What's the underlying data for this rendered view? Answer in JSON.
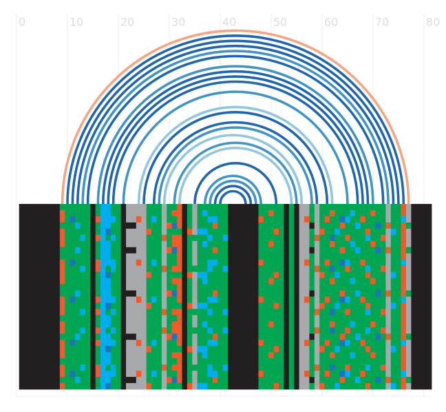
{
  "chart_data": {
    "type": "arc-alignment",
    "xlim": [
      0,
      81.5
    ],
    "xticks": [
      0,
      10,
      20,
      30,
      40,
      50,
      60,
      70,
      80
    ],
    "grid": true,
    "arcs": [
      {
        "start": 9,
        "end": 77,
        "color": "#f4a582"
      },
      {
        "start": 10,
        "end": 76,
        "color": "#2166ac"
      },
      {
        "start": 11,
        "end": 75,
        "color": "#2166ac"
      },
      {
        "start": 12,
        "end": 74,
        "color": "#2166ac"
      },
      {
        "start": 13,
        "end": 73,
        "color": "#4393c3"
      },
      {
        "start": 14,
        "end": 72,
        "color": "#2166ac"
      },
      {
        "start": 16,
        "end": 70,
        "color": "#4393c3"
      },
      {
        "start": 17,
        "end": 69,
        "color": "#2166ac"
      },
      {
        "start": 18,
        "end": 68,
        "color": "#2166ac"
      },
      {
        "start": 19,
        "end": 67,
        "color": "#2166ac"
      },
      {
        "start": 21,
        "end": 65,
        "color": "#4393c3"
      },
      {
        "start": 24,
        "end": 62,
        "color": "#92c5de"
      },
      {
        "start": 25,
        "end": 61,
        "color": "#2166ac"
      },
      {
        "start": 27,
        "end": 59,
        "color": "#2166ac"
      },
      {
        "start": 28,
        "end": 58,
        "color": "#4393c3"
      },
      {
        "start": 29,
        "end": 56,
        "color": "#92c5de"
      },
      {
        "start": 31,
        "end": 55,
        "color": "#4393c3"
      },
      {
        "start": 32,
        "end": 54,
        "color": "#92c5de"
      },
      {
        "start": 35,
        "end": 51,
        "color": "#2166ac"
      },
      {
        "start": 37,
        "end": 48,
        "color": "#4393c3"
      },
      {
        "start": 38,
        "end": 47,
        "color": "#4393c3"
      },
      {
        "start": 39,
        "end": 46,
        "color": "#2166ac"
      },
      {
        "start": 40,
        "end": 45,
        "color": "#2166ac"
      }
    ],
    "palette": {
      "K": "#231f20",
      "G": "#00a651",
      "Y": "#a7a9ac",
      "O": "#f15a29",
      "C": "#00aeef",
      "B": "#1c75bc"
    },
    "rows": [
      "KKKKKKKKGGGGGGKGCCGGKYYYYGGGYGGOKGYGGGGGGKKKKKKGGGGGKGKYYGYGGGGGGGGGGGGGYGGOYKKKK",
      "KKKKKKKKOGGGGGKGCCGGKYYYYGGGYGOOKGYGCGGGGKKKKKKGGOGGKGKYYGYGGOGGGCGGGOGGYGGOYKKKK",
      "KKKKKKKKOGBGGGKOCCCGKYYOYGCGYGGOKGYGGCCGGKKKKKKOGGGGKGKYOGYGOGGBCGGOGGGGYGGCYKKKK",
      "KKKKKKKKGGGCGGKGCCGGKKKYYGGGYOBOKGYGGGOGGKKKKKKGGGGGKGKYYKYGGGGOGGCGGGBGOGGOGKKKK",
      "KKKKKKKKOGGGGGKGCBGGKYYYYOGGYGGGKOYCCGGGGKKKKKKGGGOGKGKYYGYOGGCGGGGGOGGGYCGOYKKKK",
      "KKKKKKKKOGGGCGKOCGCGKYYYYGGGOGOOKGGGGCGGCKKKKKKGGGGGKGKYYGOGGBGGOGGGCGGOYGGOYKKKK",
      "KKKKKKKKOGGGGGKGCCGGKYYYYGGGYGOOKGYGCGGGGKKKKKKGGOGGKGKYYGYGGOGGGCGGGOGGYGGOYKKKK",
      "KKKKKKKKGGGCGGKGCCGGKKKYYGGGYOBOKGYGGGOGGKKKKKKGGGGGKGKYYKYGGGGOGGCGGGBGOGGOGKKKK",
      "KKKKKKKKGGGGGGKGCCGGKYYYYGGGYGGOKGYGGGGGGKKKKKKGGGGGKGKYYGYGGGGGGGGGGGGGYGGOYKKKK",
      "KKKKKKKKOGBGGGKOCCCGKYYOYGCGYGGOKGYGGCCGGKKKKKKOGGGGKGKYOGYGOGGBCGGOGGGGYGGCYKKKK",
      "KKKKKKKKOGGGCGKOCGCGKYYYYGGGOGOOKGGGGCGGCKKKKKKGGGGGKGKYYGOGGBGGOGGGCGGOYGGOYKKKK",
      "KKKKKKKKOGGGGGKGCBGGKYYYYOGGYGGGKOYCCGGGGKKKKKKGGGOGKGKYYGYOGGCGGGGGOGGGYCGOYKKKK",
      "KKKKKKKKOGGGGGKGCCGGKYYYYGGGYGOOKGYGCGGGGKKKKKKGGOGGKGKYYGYGGOGGGCGGGOGGYGGOYKKKK",
      "KKKKKKKKGGGGGGKGCCGGKYYYYGGGYGGOKGYGGGGGGKKKKKKGGGGGKGKYYGYGGGGGGGGGGGGGYGGOYKKKK",
      "KKKKKKKKGGGCGGKGCCGGKKKYYGGGYOBOKGYGGGOGGKKKKKKGGGGGKGKYYKYGGGGOGGCGGGBGOGGOGKKKK",
      "KKKKKKKKOGBGGGKOCCCGKYYOYGCGYGGOKGYGGCCGGKKKKKKOGGGGKGKYOGYGOGGBCGGOGGGGYGGCYKKKK",
      "KKKKKKKKOGGGGGKGCBGGKYYYYOGGYGGGKOYCCGGGGKKKKKKGGGOGKGKYYGYOGGCGGGGGOGGGYCGOYKKKK",
      "KKKKKKKKOGGGCGKOCGCGKYYYYGGGOGOOKGGGGCGGCKKKKKKGGGGGKGKYYGOGGBGGOGGGCGGOYGGOYKKKK",
      "KKKKKKKKGGGGGGKGCCGGKYYYYGGGYGGOKGYGGGGGGKKKKKKGGGGGKGKYYGYGGGGGGGGGGGGGYGGOYKKKK",
      "KKKKKKKKOGGGGGKGCCGGKYYYYGGGYGOOKGYGCGGGGKKKKKKGGOGGKGKYYGYGGOGGGCGGGOGGYGGOYKKKK",
      "KKKKKKKKOGGGCGKOCGCGKYYYYGGGOGOOKGGGGCGGCKKKKKKGGGGGKGKYYGOGGBGGOGGGCGGOYGGOYKKKK",
      "KKKKKKKKGGGCGGKGCCGGKKKYYGGGYOBOKGYGGGOGGKKKKKKGGGGGKGKYYKYGGGGOGGCGGGBGOGGOGKKKK",
      "KKKKKKKKOGBGGGKOCCCGKYYOYGCGYGGOKGYGGCCGGKKKKKKOGGGGKGKYOGYGOGGBCGGOGGGGYGGCYKKKK",
      "KKKKKKKKOGGGGGKGCBGGKYYYYOGGYGGGKOYCCGGGGKKKKKKGGGOGKGKYYGYOGGCGGGGGOGGGYCGOYKKKK",
      "KKKKKKKKOGGGGGKGCCGGKYYYYGGGYGOOKGYGCGGGGKKKKKKGGOGGKGKYYGYGGOGGGCGGGOGGYGGOYKKKK",
      "KKKKKKKKGGGGGGKGCCGGKYYYYGGGYGGOKGYGGGGGGKKKKKKGGGGGKGKYYGYGGGGGGGGGGGGGYGGOYKKKK",
      "KKKKKKKKOGGGCGKOCGCGKYYYYGGGOGOOKGGGGCGGCKKKKKKGGGGGKGKYYGOGGBGGOGGGCGGOYGGOYKKKK",
      "KKKKKKKKOGBGGGKOCCCGKYYOYGCGYGGOKGYGGCCGGKKKKKKOGGGGKGKYOGYGOGGBCGGOGGGGYGGCYKKKK",
      "KKKKKKKKGGGCGGKGCCGGKKKYYGGGYOBOKGYGGGOGGKKKKKKGGGGGKGKYYKYGGGGOGGCGGGBGOGGOGKKKK",
      "KKKKKKKKOGGGGGKGCBGGKYYYYOGGYGGGKOYCCGGGGKKKKKKGGGOGKGKYYGYOGGCGGGGGOGGGYCGOYKKKK"
    ]
  }
}
